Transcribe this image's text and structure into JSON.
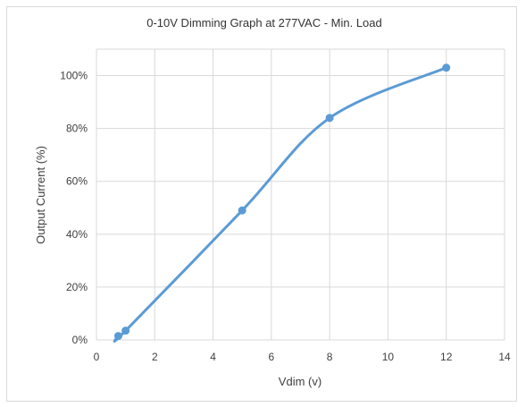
{
  "chart_data": {
    "type": "line",
    "title": "0-10V Dimming Graph at 277VAC - Min. Load",
    "xlabel": "Vdim (v)",
    "ylabel": "Output Current (%)",
    "xlim": [
      0,
      14
    ],
    "ylim": [
      0,
      110
    ],
    "x_ticks": [
      0,
      2,
      4,
      6,
      8,
      10,
      12,
      14
    ],
    "x_tick_labels": [
      "0",
      "2",
      "4",
      "6",
      "8",
      "10",
      "12",
      "14"
    ],
    "y_ticks": [
      0,
      20,
      40,
      60,
      80,
      100
    ],
    "y_tick_labels": [
      "0%",
      "20%",
      "40%",
      "60%",
      "80%",
      "100%"
    ],
    "grid": true,
    "smooth": true,
    "series": [
      {
        "color": "#5b9bd5",
        "x": [
          0.75,
          1,
          5,
          8,
          12
        ],
        "y": [
          1.5,
          3.5,
          49,
          84,
          103
        ]
      }
    ]
  }
}
